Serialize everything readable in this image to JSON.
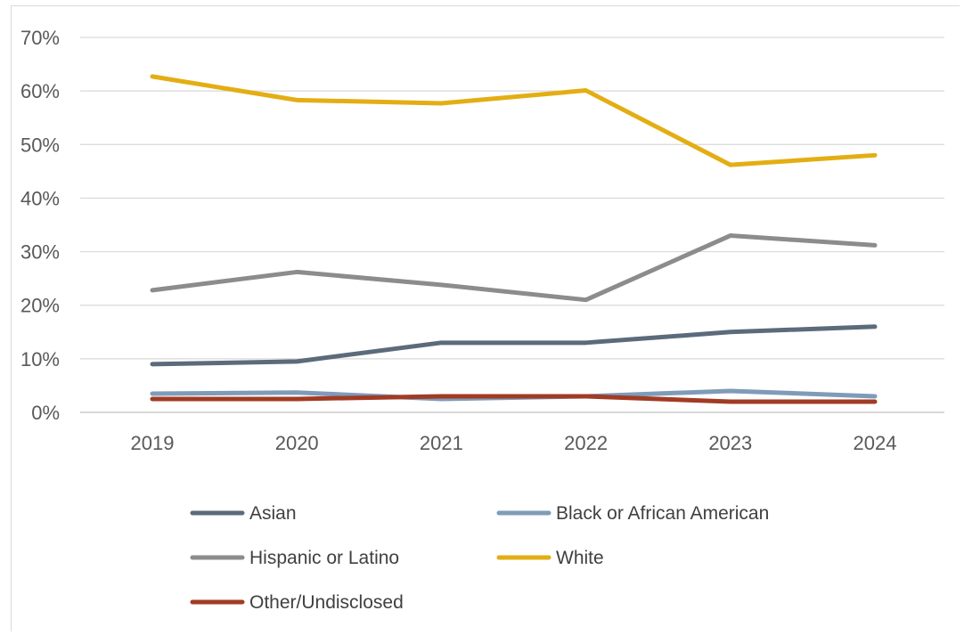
{
  "chart_data": {
    "type": "line",
    "title": "",
    "xlabel": "",
    "ylabel": "",
    "categories": [
      "2019",
      "2020",
      "2021",
      "2022",
      "2023",
      "2024"
    ],
    "ylim": [
      0,
      70
    ],
    "y_ticks": [
      "0%",
      "10%",
      "20%",
      "30%",
      "40%",
      "50%",
      "60%",
      "70%"
    ],
    "y_unit": "%",
    "grid": "horizontal",
    "legend_position": "bottom",
    "series": [
      {
        "name": "Asian",
        "color": "#5b6b7b",
        "values": [
          9,
          9.5,
          13,
          13,
          15,
          16
        ]
      },
      {
        "name": "Black or African American",
        "color": "#7f9bb8",
        "values": [
          3.5,
          3.7,
          2.5,
          3,
          4,
          3
        ]
      },
      {
        "name": "Hispanic or Latino",
        "color": "#8c8c8c",
        "values": [
          22.8,
          26.2,
          23.8,
          21,
          33,
          31.2
        ]
      },
      {
        "name": "White",
        "color": "#e3ae14",
        "values": [
          62.7,
          58.3,
          57.7,
          60.1,
          46.2,
          48
        ]
      },
      {
        "name": "Other/Undisclosed",
        "color": "#a23b24",
        "values": [
          2.5,
          2.5,
          3,
          3,
          2,
          2
        ]
      }
    ],
    "legend_order": [
      {
        "series": "Asian"
      },
      {
        "series": "Black or African American"
      },
      {
        "series": "Hispanic or Latino"
      },
      {
        "series": "White"
      },
      {
        "series": "Other/Undisclosed"
      }
    ]
  }
}
